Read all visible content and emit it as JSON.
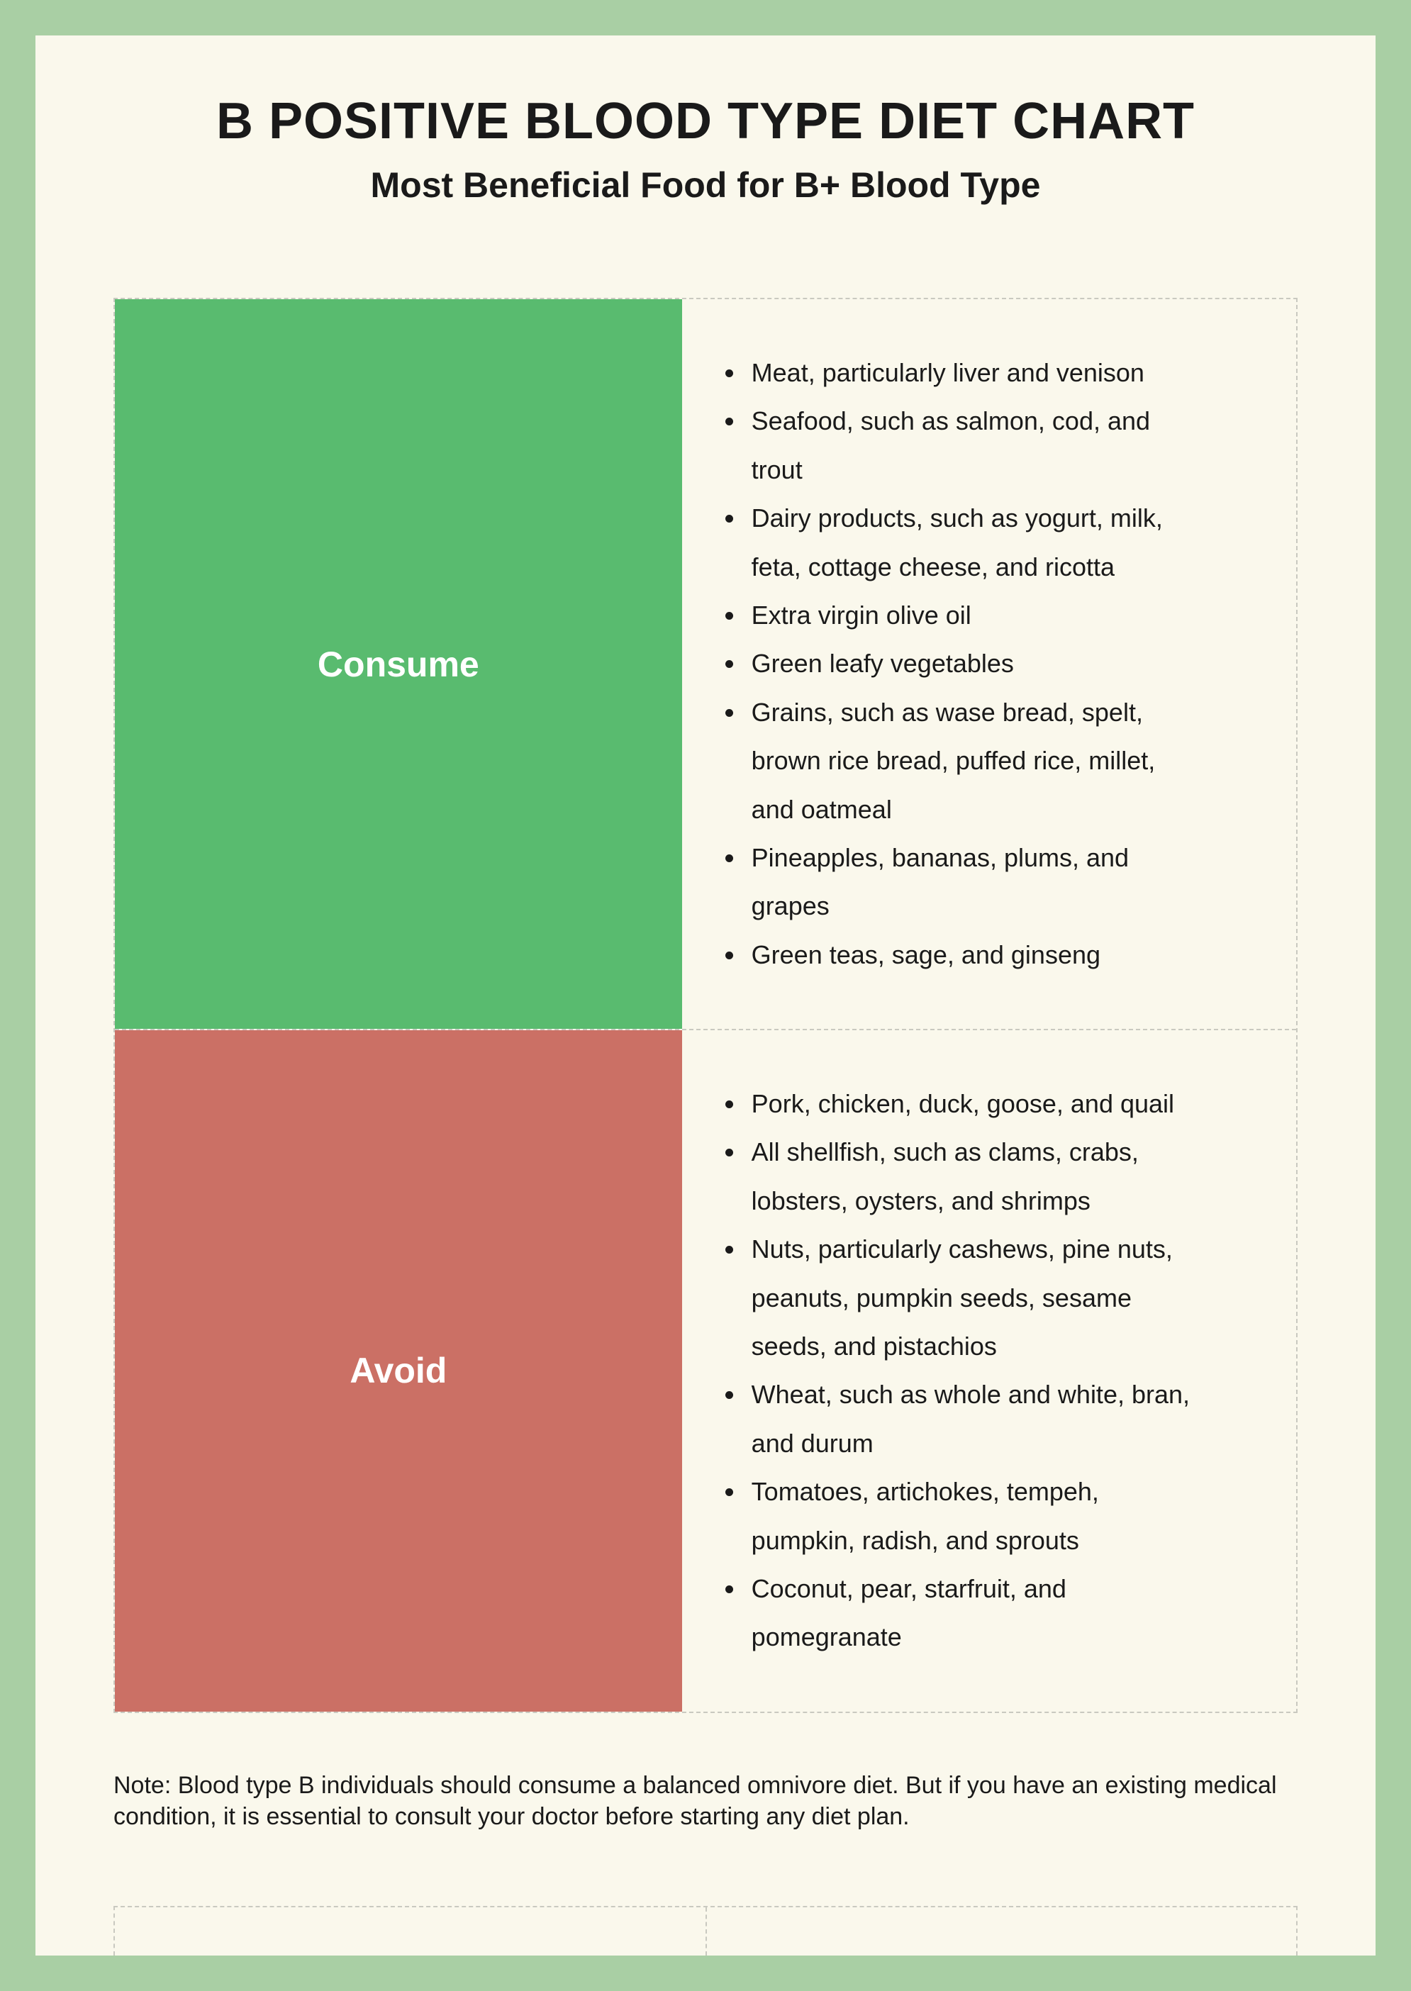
{
  "colors": {
    "outer_bg": "#a9cfa4",
    "page_bg": "#faf8ec",
    "text": "#1a1a1a",
    "dash_border": "#c9c9c0",
    "consume_bg": "#59bb6f",
    "avoid_bg": "#cb7065",
    "label_text": "#ffffff"
  },
  "title": "B POSITIVE BLOOD TYPE DIET CHART",
  "subtitle": "Most Beneficial Food for B+ Blood Type",
  "rows": [
    {
      "key": "consume",
      "label": "Consume",
      "bg": "#59bb6f",
      "items": [
        "Meat, particularly liver and venison",
        "Seafood, such as salmon, cod, and trout",
        "Dairy products, such as yogurt, milk, feta, cottage cheese, and ricotta",
        "Extra virgin olive oil",
        "Green leafy vegetables",
        "Grains, such as wase bread, spelt, brown rice bread, puffed rice, millet, and oatmeal",
        "Pineapples, bananas, plums, and grapes",
        "Green teas, sage, and ginseng"
      ]
    },
    {
      "key": "avoid",
      "label": "Avoid",
      "bg": "#cb7065",
      "items": [
        "Pork, chicken, duck, goose, and quail",
        "All shellfish, such as clams, crabs, lobsters, oysters, and shrimps",
        "Nuts, particularly cashews, pine nuts, peanuts, pumpkin seeds, sesame seeds, and pistachios",
        "Wheat, such as whole and white, bran, and durum",
        "Tomatoes, artichokes, tempeh, pumpkin, radish, and sprouts",
        "Coconut, pear, starfruit, and pomegranate"
      ]
    }
  ],
  "note": "Note: Blood type B individuals should consume a balanced omnivore diet. But if you have an existing medical condition, it is essential to consult your doctor before starting any diet plan."
}
